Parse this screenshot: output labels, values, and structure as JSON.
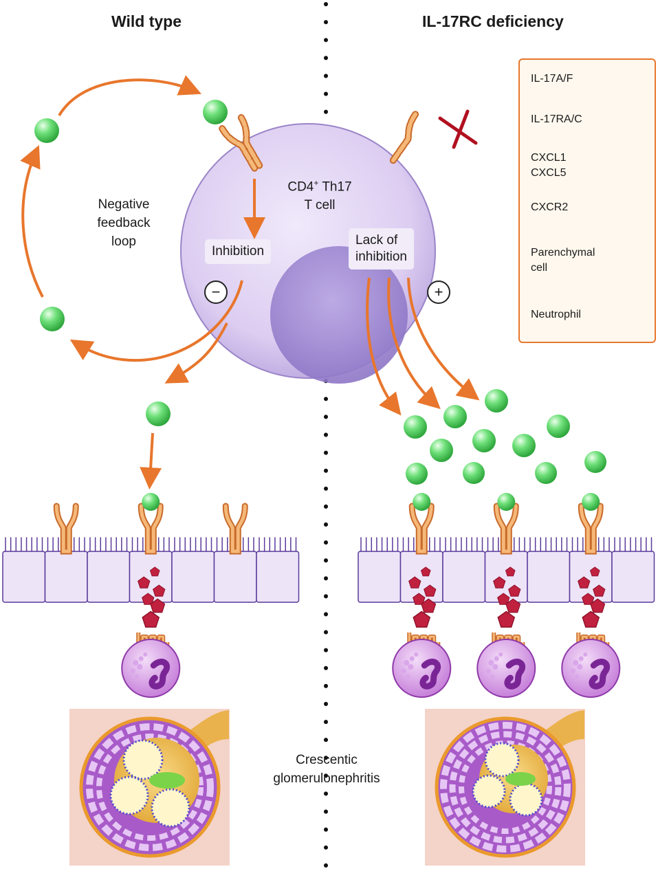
{
  "panels": {
    "left_title": "Wild type",
    "right_title": "IL-17RC deficiency"
  },
  "t_cell": {
    "line1": "CD4",
    "superscript": "+",
    "line1_rest": " Th17",
    "line2": "T cell"
  },
  "left": {
    "loop_label": [
      "Negative",
      "feedback",
      "loop"
    ],
    "inhibition": "Inhibition",
    "sign": "−"
  },
  "right": {
    "lack_label": [
      "Lack of",
      "inhibition"
    ],
    "sign": "+"
  },
  "outcome": [
    "Crescentic",
    "glomerulonephritis"
  ],
  "legend": {
    "items": [
      {
        "label": [
          "IL-17A/F"
        ],
        "icon": "green-sphere-icon"
      },
      {
        "label": [
          "IL-17RA/C"
        ],
        "icon": "receptor-icon"
      },
      {
        "label": [
          "CXCL1",
          "CXCL5"
        ],
        "icon": "pentagon-icon"
      },
      {
        "label": [
          "CXCR2"
        ],
        "icon": "cxcr2-icon"
      },
      {
        "label": [
          "Parenchymal",
          "cell"
        ],
        "icon": "parenchymal-cell-icon"
      },
      {
        "label": [
          "Neutrophil"
        ],
        "icon": "neutrophil-icon"
      }
    ]
  },
  "colors": {
    "arrow": "#e8762c",
    "cell_light": "#ddd0f0",
    "cell_dark": "#9a84c8",
    "green": "#5fd36a",
    "chemokine": "#c0213f",
    "neutrophil": "#cc8ee0",
    "inhibit_x": "#b01020"
  }
}
